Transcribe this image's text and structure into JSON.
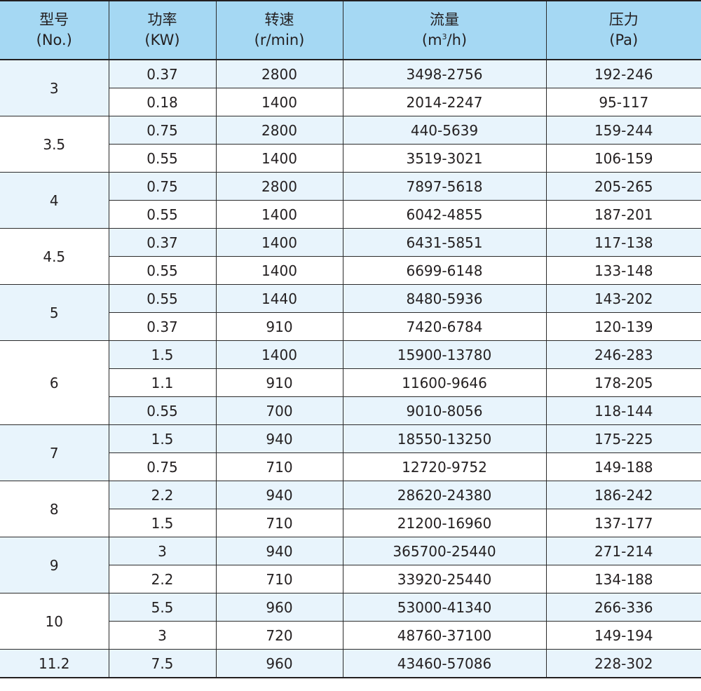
{
  "colors": {
    "header_bg": "#a5d8f3",
    "shade_bg": "#e8f4fc",
    "plain_bg": "#ffffff",
    "border": "#231f20"
  },
  "headers": [
    {
      "line1": "型号",
      "line2": "(No.)"
    },
    {
      "line1": "功率",
      "line2": "(KW)"
    },
    {
      "line1": "转速",
      "line2": "(r/min)"
    },
    {
      "line1": "流量",
      "line2_pre": "(m",
      "line2_sup": "3",
      "line2_post": "/h)"
    },
    {
      "line1": "压力",
      "line2": "(Pa)"
    }
  ],
  "groups": [
    {
      "model": "3",
      "rows": [
        {
          "power": "0.37",
          "speed": "2800",
          "flow": "3498-2756",
          "pressure": "192-246"
        },
        {
          "power": "0.18",
          "speed": "1400",
          "flow": "2014-2247",
          "pressure": "95-117"
        }
      ]
    },
    {
      "model": "3.5",
      "rows": [
        {
          "power": "0.75",
          "speed": "2800",
          "flow": "440-5639",
          "pressure": "159-244"
        },
        {
          "power": "0.55",
          "speed": "1400",
          "flow": "3519-3021",
          "pressure": "106-159"
        }
      ]
    },
    {
      "model": "4",
      "rows": [
        {
          "power": "0.75",
          "speed": "2800",
          "flow": "7897-5618",
          "pressure": "205-265"
        },
        {
          "power": "0.55",
          "speed": "1400",
          "flow": "6042-4855",
          "pressure": "187-201"
        }
      ]
    },
    {
      "model": "4.5",
      "rows": [
        {
          "power": "0.37",
          "speed": "1400",
          "flow": "6431-5851",
          "pressure": "117-138"
        },
        {
          "power": "0.55",
          "speed": "1400",
          "flow": "6699-6148",
          "pressure": "133-148"
        }
      ]
    },
    {
      "model": "5",
      "rows": [
        {
          "power": "0.55",
          "speed": "1440",
          "flow": "8480-5936",
          "pressure": "143-202"
        },
        {
          "power": "0.37",
          "speed": "910",
          "flow": "7420-6784",
          "pressure": "120-139"
        }
      ]
    },
    {
      "model": "6",
      "rows": [
        {
          "power": "1.5",
          "speed": "1400",
          "flow": "15900-13780",
          "pressure": "246-283"
        },
        {
          "power": "1.1",
          "speed": "910",
          "flow": "11600-9646",
          "pressure": "178-205"
        },
        {
          "power": "0.55",
          "speed": "700",
          "flow": "9010-8056",
          "pressure": "118-144"
        }
      ]
    },
    {
      "model": "7",
      "rows": [
        {
          "power": "1.5",
          "speed": "940",
          "flow": "18550-13250",
          "pressure": "175-225"
        },
        {
          "power": "0.75",
          "speed": "710",
          "flow": "12720-9752",
          "pressure": "149-188"
        }
      ]
    },
    {
      "model": "8",
      "rows": [
        {
          "power": "2.2",
          "speed": "940",
          "flow": "28620-24380",
          "pressure": "186-242"
        },
        {
          "power": "1.5",
          "speed": "710",
          "flow": "21200-16960",
          "pressure": "137-177"
        }
      ]
    },
    {
      "model": "9",
      "rows": [
        {
          "power": "3",
          "speed": "940",
          "flow": "365700-25440",
          "pressure": "271-214"
        },
        {
          "power": "2.2",
          "speed": "710",
          "flow": "33920-25440",
          "pressure": "134-188"
        }
      ]
    },
    {
      "model": "10",
      "rows": [
        {
          "power": "5.5",
          "speed": "960",
          "flow": "53000-41340",
          "pressure": "266-336"
        },
        {
          "power": "3",
          "speed": "720",
          "flow": "48760-37100",
          "pressure": "149-194"
        }
      ]
    },
    {
      "model": "11.2",
      "rows": [
        {
          "power": "7.5",
          "speed": "960",
          "flow": "43460-57086",
          "pressure": "228-302"
        }
      ]
    }
  ]
}
